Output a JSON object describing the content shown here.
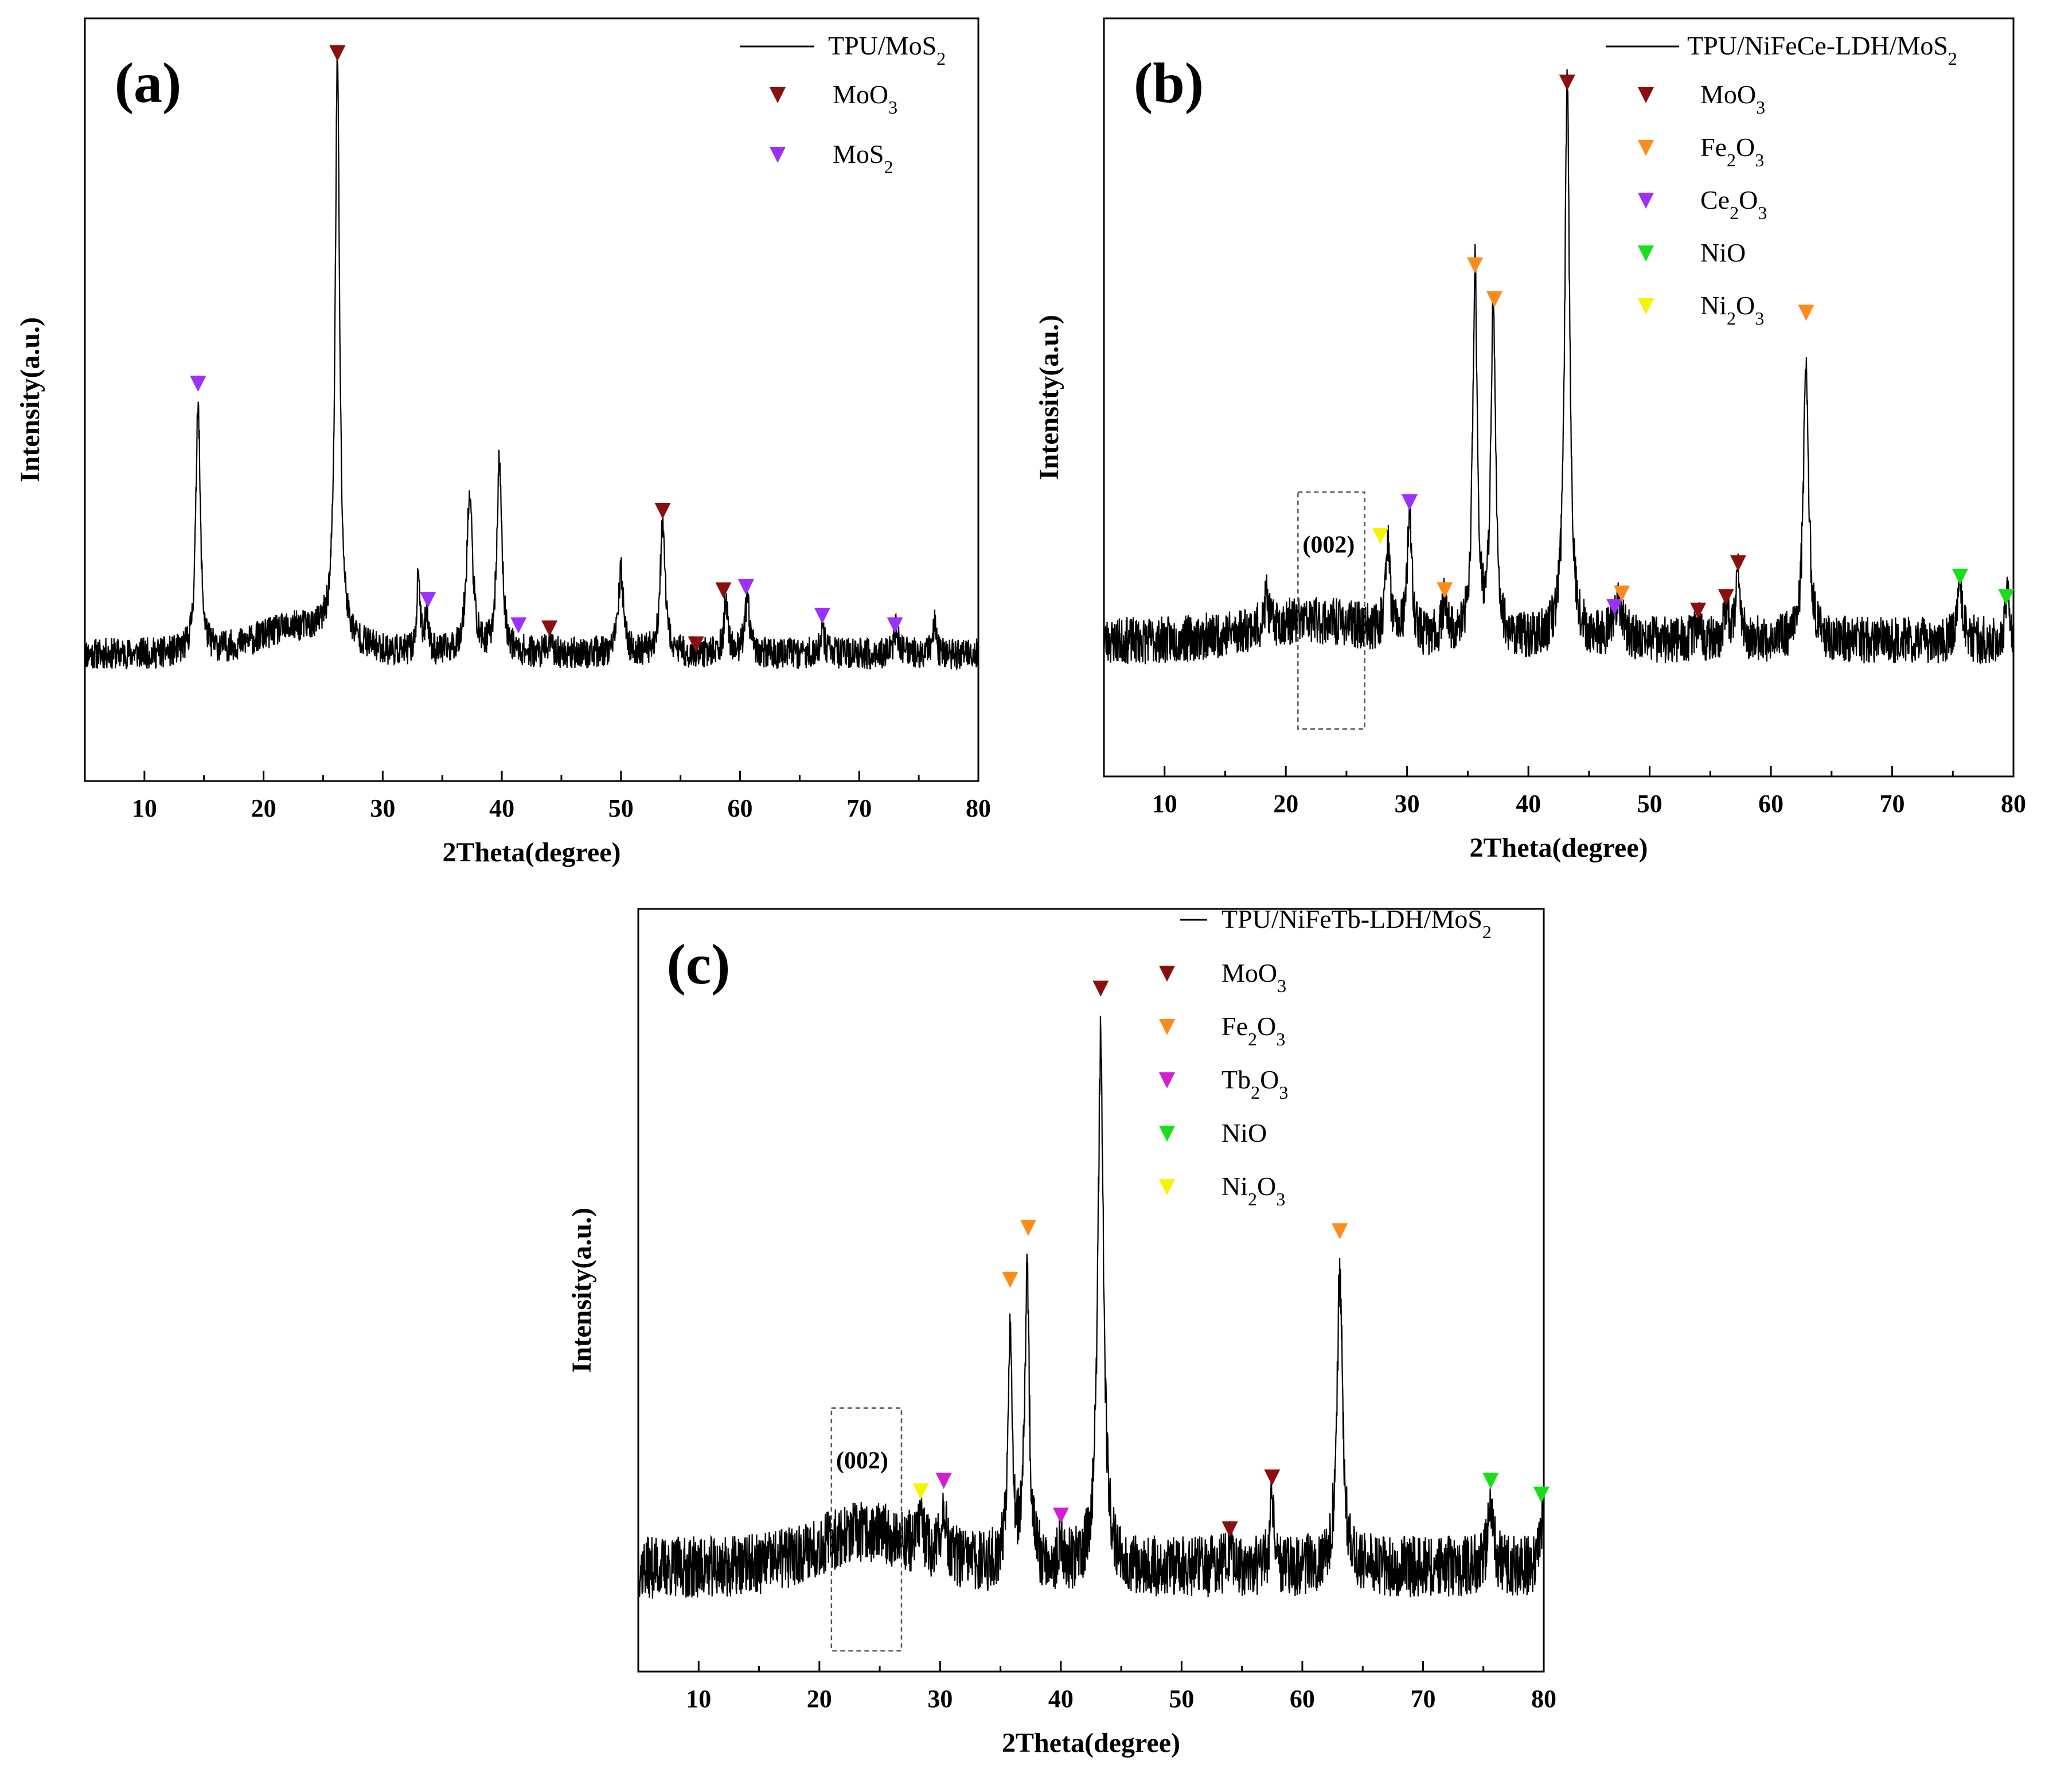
{
  "colors": {
    "MoO3": "#8b0f0f",
    "MoS2": "#9b30ff",
    "Fe2O3": "#ff8c1a",
    "Ce2O3": "#9b30ff",
    "Tb2O3": "#d21fd2",
    "NiO": "#18e018",
    "Ni2O3": "#f5f500",
    "trace": "#000000",
    "box": "#555555"
  },
  "chart_data": [
    {
      "type": "line",
      "panel": "(a)",
      "series_name": "TPU/MoS2",
      "legend_label": {
        "base": "TPU/MoS",
        "sub": "2"
      },
      "xlabel": "2Theta(degree)",
      "ylabel": "Intensity(a.u.)",
      "xlim": [
        5,
        80
      ],
      "ylim": [
        -0.15,
        1.05
      ],
      "xticks": [
        10,
        20,
        30,
        40,
        50,
        60,
        70,
        80
      ],
      "baseline": 0.05,
      "hump": {
        "center": 23,
        "width": 5,
        "height": 0.04
      },
      "noise": 0.025,
      "seed": 11,
      "peaks": [
        {
          "x": 14.5,
          "h": 0.4,
          "w": 0.22
        },
        {
          "x": 26.2,
          "h": 0.91,
          "w": 0.22
        },
        {
          "x": 33.0,
          "h": 0.13,
          "w": 0.15
        },
        {
          "x": 33.7,
          "h": 0.07,
          "w": 0.15
        },
        {
          "x": 37.3,
          "h": 0.25,
          "w": 0.3
        },
        {
          "x": 39.8,
          "h": 0.3,
          "w": 0.25
        },
        {
          "x": 44.0,
          "h": 0.02,
          "w": 0.2
        },
        {
          "x": 50.0,
          "h": 0.13,
          "w": 0.25
        },
        {
          "x": 53.5,
          "h": 0.2,
          "w": 0.25
        },
        {
          "x": 58.8,
          "h": 0.08,
          "w": 0.2
        },
        {
          "x": 60.6,
          "h": 0.08,
          "w": 0.25
        },
        {
          "x": 66.9,
          "h": 0.04,
          "w": 0.2
        },
        {
          "x": 73.1,
          "h": 0.04,
          "w": 0.2
        },
        {
          "x": 76.3,
          "h": 0.05,
          "w": 0.15
        }
      ],
      "legend": [
        {
          "phase": "MoO3",
          "base": "MoO",
          "sub": "3"
        },
        {
          "phase": "MoS2",
          "base": "MoS",
          "sub": "2"
        }
      ],
      "markers": [
        {
          "phase": "MoS2",
          "x": 14.5,
          "y": 0.475
        },
        {
          "phase": "MoO3",
          "x": 26.2,
          "y": 0.995
        },
        {
          "phase": "MoS2",
          "x": 33.8,
          "y": 0.135
        },
        {
          "phase": "MoS2",
          "x": 41.4,
          "y": 0.095
        },
        {
          "phase": "MoO3",
          "x": 44.0,
          "y": 0.09
        },
        {
          "phase": "MoO3",
          "x": 53.5,
          "y": 0.275
        },
        {
          "phase": "MoO3",
          "x": 56.3,
          "y": 0.065
        },
        {
          "phase": "MoO3",
          "x": 58.6,
          "y": 0.15
        },
        {
          "phase": "MoS2",
          "x": 60.5,
          "y": 0.155
        },
        {
          "phase": "MoS2",
          "x": 66.9,
          "y": 0.11
        },
        {
          "phase": "MoS2",
          "x": 73.0,
          "y": 0.095
        }
      ],
      "annotation": null
    },
    {
      "type": "line",
      "panel": "(b)",
      "series_name": "TPU/NiFeCe-LDH/MoS2",
      "legend_label": {
        "base": "TPU/NiFeCe-LDH/MoS",
        "sub": "2"
      },
      "xlabel": "2Theta(degree)",
      "ylabel": "Intensity(a.u.)",
      "xlim": [
        5,
        80
      ],
      "ylim": [
        -0.12,
        1.0
      ],
      "xticks": [
        10,
        20,
        30,
        40,
        50,
        60,
        70,
        80
      ],
      "baseline": 0.08,
      "hump": {
        "center": 22,
        "width": 7,
        "height": 0.03
      },
      "noise": 0.035,
      "seed": 23,
      "peaks": [
        {
          "x": 18.4,
          "h": 0.05,
          "w": 0.15
        },
        {
          "x": 28.4,
          "h": 0.14,
          "w": 0.2
        },
        {
          "x": 30.2,
          "h": 0.19,
          "w": 0.2
        },
        {
          "x": 33.1,
          "h": 0.06,
          "w": 0.2
        },
        {
          "x": 35.6,
          "h": 0.55,
          "w": 0.22
        },
        {
          "x": 37.1,
          "h": 0.5,
          "w": 0.22
        },
        {
          "x": 43.2,
          "h": 0.82,
          "w": 0.25
        },
        {
          "x": 47.4,
          "h": 0.06,
          "w": 0.4
        },
        {
          "x": 54.0,
          "h": 0.03,
          "w": 0.2
        },
        {
          "x": 56.3,
          "h": 0.05,
          "w": 0.2
        },
        {
          "x": 57.3,
          "h": 0.1,
          "w": 0.2
        },
        {
          "x": 62.9,
          "h": 0.42,
          "w": 0.25
        },
        {
          "x": 75.6,
          "h": 0.08,
          "w": 0.25
        },
        {
          "x": 79.5,
          "h": 0.08,
          "w": 0.2
        }
      ],
      "legend": [
        {
          "phase": "MoO3",
          "base": "MoO",
          "sub": "3"
        },
        {
          "phase": "Fe2O3",
          "base": "Fe",
          "sub": "2",
          "base2": "O",
          "sub2": "3"
        },
        {
          "phase": "Ce2O3",
          "base": "Ce",
          "sub": "2",
          "base2": "O",
          "sub2": "3"
        },
        {
          "phase": "NiO",
          "base": "NiO"
        },
        {
          "phase": "Ni2O3",
          "base": "Ni",
          "sub": "2",
          "base2": "O",
          "sub2": "3"
        }
      ],
      "markers": [
        {
          "phase": "Ni2O3",
          "x": 27.8,
          "y": 0.235
        },
        {
          "phase": "Ce2O3",
          "x": 30.2,
          "y": 0.285
        },
        {
          "phase": "Fe2O3",
          "x": 33.1,
          "y": 0.155
        },
        {
          "phase": "Fe2O3",
          "x": 35.6,
          "y": 0.635
        },
        {
          "phase": "Fe2O3",
          "x": 37.2,
          "y": 0.585
        },
        {
          "phase": "MoO3",
          "x": 43.2,
          "y": 0.905
        },
        {
          "phase": "Ce2O3",
          "x": 47.1,
          "y": 0.13
        },
        {
          "phase": "Fe2O3",
          "x": 47.7,
          "y": 0.15
        },
        {
          "phase": "MoO3",
          "x": 54.0,
          "y": 0.125
        },
        {
          "phase": "MoO3",
          "x": 56.3,
          "y": 0.145
        },
        {
          "phase": "MoO3",
          "x": 57.3,
          "y": 0.195
        },
        {
          "phase": "Fe2O3",
          "x": 62.9,
          "y": 0.565
        },
        {
          "phase": "NiO",
          "x": 75.6,
          "y": 0.175
        },
        {
          "phase": "NiO",
          "x": 79.4,
          "y": 0.145
        }
      ],
      "annotation": {
        "label": "(002)",
        "x0": 21.0,
        "x1": 26.5,
        "y0": -0.05,
        "y1": 0.3
      }
    },
    {
      "type": "line",
      "panel": "(c)",
      "series_name": "TPU/NiFeTb-LDH/MoS2",
      "legend_label": {
        "base": "TPU/NiFeTb-LDH/MoS",
        "sub": "2"
      },
      "xlabel": "2Theta(degree)",
      "ylabel": "Intensity(a.u.)",
      "xlim": [
        5,
        80
      ],
      "ylim": [
        -0.15,
        0.95
      ],
      "xticks": [
        10,
        20,
        30,
        40,
        50,
        60,
        70,
        80
      ],
      "baseline": 0.0,
      "hump": {
        "center": 24,
        "width": 6,
        "height": 0.05
      },
      "noise": 0.045,
      "seed": 37,
      "peaks": [
        {
          "x": 28.4,
          "h": 0.05,
          "w": 0.2
        },
        {
          "x": 30.3,
          "h": 0.08,
          "w": 0.2
        },
        {
          "x": 35.8,
          "h": 0.35,
          "w": 0.22
        },
        {
          "x": 37.2,
          "h": 0.42,
          "w": 0.22
        },
        {
          "x": 40.0,
          "h": 0.03,
          "w": 0.2
        },
        {
          "x": 43.3,
          "h": 0.77,
          "w": 0.28
        },
        {
          "x": 54.0,
          "h": 0.03,
          "w": 0.2
        },
        {
          "x": 57.5,
          "h": 0.1,
          "w": 0.2
        },
        {
          "x": 63.1,
          "h": 0.42,
          "w": 0.28
        },
        {
          "x": 75.6,
          "h": 0.1,
          "w": 0.25
        },
        {
          "x": 79.8,
          "h": 0.07,
          "w": 0.2
        }
      ],
      "legend": [
        {
          "phase": "MoO3",
          "base": "MoO",
          "sub": "3"
        },
        {
          "phase": "Fe2O3",
          "base": "Fe",
          "sub": "2",
          "base2": "O",
          "sub2": "3"
        },
        {
          "phase": "Tb2O3",
          "base": "Tb",
          "sub": "2",
          "base2": "O",
          "sub2": "3"
        },
        {
          "phase": "NiO",
          "base": "NiO"
        },
        {
          "phase": "Ni2O3",
          "base": "Ni",
          "sub": "2",
          "base2": "O",
          "sub2": "3"
        }
      ],
      "markers": [
        {
          "phase": "Ni2O3",
          "x": 28.4,
          "y": 0.11
        },
        {
          "phase": "Tb2O3",
          "x": 30.3,
          "y": 0.125
        },
        {
          "phase": "Fe2O3",
          "x": 35.8,
          "y": 0.415
        },
        {
          "phase": "Fe2O3",
          "x": 37.3,
          "y": 0.49
        },
        {
          "phase": "Tb2O3",
          "x": 40.0,
          "y": 0.075
        },
        {
          "phase": "MoO3",
          "x": 43.3,
          "y": 0.835
        },
        {
          "phase": "MoO3",
          "x": 54.0,
          "y": 0.055
        },
        {
          "phase": "MoO3",
          "x": 57.5,
          "y": 0.13
        },
        {
          "phase": "Fe2O3",
          "x": 63.1,
          "y": 0.485
        },
        {
          "phase": "NiO",
          "x": 75.6,
          "y": 0.125
        },
        {
          "phase": "NiO",
          "x": 79.8,
          "y": 0.105
        }
      ],
      "annotation": {
        "label": "(002)",
        "x0": 21.0,
        "x1": 26.8,
        "y0": -0.12,
        "y1": 0.23
      }
    }
  ]
}
